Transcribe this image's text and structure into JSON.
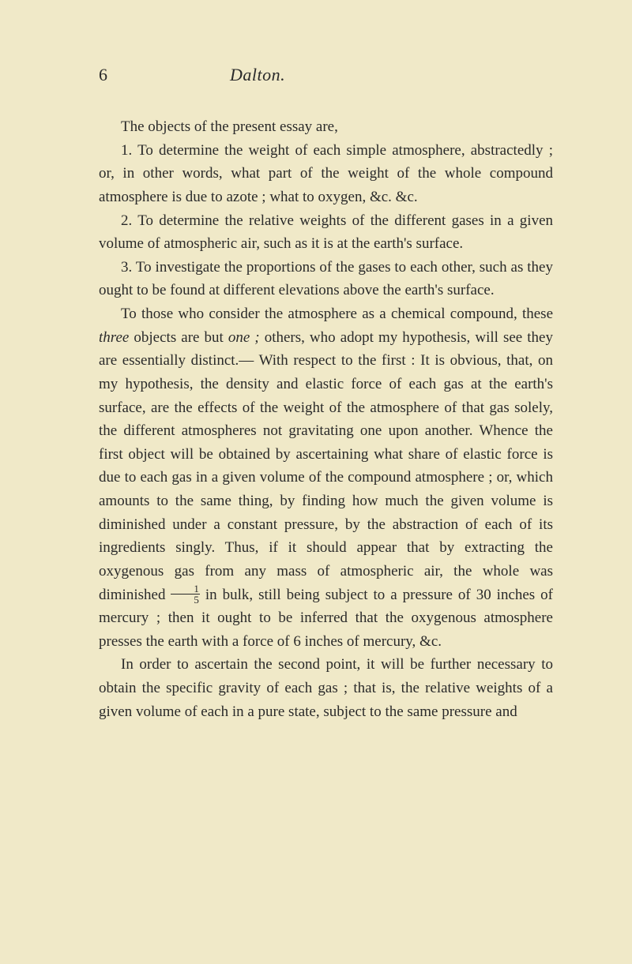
{
  "page": {
    "number": "6",
    "title": "Dalton.",
    "background_color": "#f0e9c8",
    "text_color": "#2a2a2a",
    "body_fontsize": 19,
    "title_fontsize": 22,
    "line_height": 1.56
  },
  "paragraphs": {
    "p1": "The objects of the present essay are,",
    "p2": {
      "pre": "1. To determine the weight of each simple atmosphere, abstractedly ; or, in other words, what part of the weight of the whole compound atmosphere is due to azote ; what to oxygen, &c. &c."
    },
    "p3": "2. To determine the relative weights of the different gases in a given volume of atmospheric air, such as it is at the earth's surface.",
    "p4": "3. To investigate the proportions of the gases to each other, such as they ought to be found at different elevations above the earth's surface.",
    "p5": {
      "s1": "To those who consider the atmosphere as a chemical compound, these ",
      "i1": "three",
      "s2": " objects are but ",
      "i2": "one ;",
      "s3": " others, who adopt my hypothesis, will see they are essentially distinct.— With respect to the first : It is obvious, that, on my hypothesis, the density and elastic force of each gas at the earth's surface, are the effects of the weight of the atmosphere of that gas solely, the different atmospheres not gravitating one upon another. Whence the first object will be obtained by ascertaining what share of elastic force is due to each gas in a given volume of the compound atmosphere ; or, which amounts to the same thing, by finding how much the given volume is diminished under a constant pressure, by the abstraction of each of its ingredients singly. Thus, if it should appear that by extracting the oxygenous gas from any mass of atmospheric air, the whole was diminished ",
      "frac_num": "1",
      "frac_den": "5",
      "s4": " in bulk, still being subject to a pressure of 30 inches of mercury ; then it ought to be inferred that the oxygenous atmosphere presses the earth with a force of 6 inches of mercury, &c."
    },
    "p6": "In order to ascertain the second point, it will be further necessary to obtain the specific gravity of each gas ; that is, the relative weights of a given volume of each in a pure state, subject to the same pressure and"
  }
}
